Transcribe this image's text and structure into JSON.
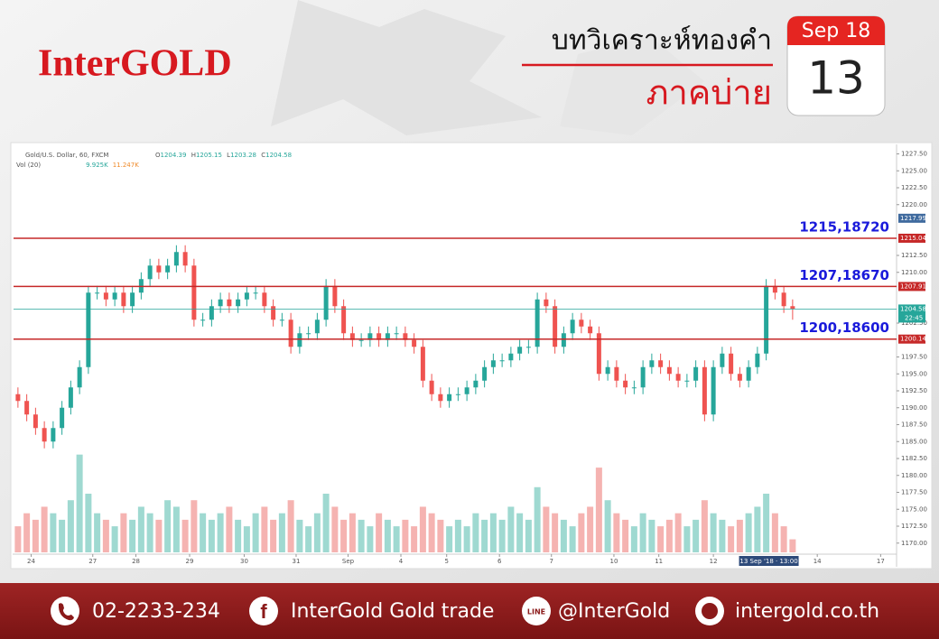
{
  "header": {
    "logo": "InterGOLD",
    "title": "บทวิเคราะห์ทองคำ",
    "subtitle": "ภาคบ่าย",
    "calendar_month": "Sep 18",
    "calendar_day": "13"
  },
  "chart_data": {
    "type": "candlestick",
    "symbol": "Gold/U.S. Dollar, 60, FXCM",
    "ohlc_legend": [
      {
        "key": "O",
        "value": 1204.39
      },
      {
        "key": "H",
        "value": 1205.15
      },
      {
        "key": "L",
        "value": 1203.28
      },
      {
        "key": "C",
        "value": 1204.58
      }
    ],
    "volume_legend": {
      "name": "Vol (20)",
      "values": [
        "9.925K",
        "11.247K"
      ]
    },
    "x": [
      0,
      1,
      2,
      3,
      4,
      5,
      6,
      7,
      8,
      9,
      10,
      11,
      12,
      13,
      14,
      15,
      16,
      17,
      18,
      19,
      20,
      21,
      22,
      23,
      24,
      25,
      26,
      27,
      28,
      29,
      30,
      31,
      32,
      33,
      34,
      35,
      36,
      37,
      38,
      39,
      40,
      41,
      42,
      43,
      44,
      45,
      46,
      47,
      48,
      49,
      50,
      51,
      52,
      53,
      54,
      55,
      56,
      57,
      58,
      59,
      60,
      61,
      62,
      63,
      64,
      65,
      66,
      67,
      68,
      69,
      70,
      71,
      72,
      73,
      74,
      75,
      76,
      77,
      78,
      79,
      80,
      81,
      82,
      83,
      84,
      85,
      86,
      87,
      88
    ],
    "open": [
      1192,
      1191,
      1189,
      1187,
      1185,
      1187,
      1190,
      1193,
      1196,
      1207,
      1207,
      1206,
      1207,
      1205,
      1207,
      1209,
      1211,
      1210,
      1211,
      1213,
      1211,
      1203,
      1203,
      1205,
      1206,
      1205,
      1206,
      1207,
      1207,
      1205,
      1203,
      1203,
      1199,
      1201,
      1201,
      1203,
      1208,
      1205,
      1201,
      1200,
      1200,
      1201,
      1200,
      1201,
      1201,
      1200,
      1199,
      1194,
      1192,
      1191,
      1192,
      1192,
      1193,
      1194,
      1196,
      1197,
      1197,
      1198,
      1199,
      1199,
      1206,
      1205,
      1199,
      1201,
      1203,
      1202,
      1201,
      1195,
      1196,
      1194,
      1193,
      1193,
      1196,
      1197,
      1196,
      1195,
      1194,
      1194,
      1196,
      1189,
      1196,
      1198,
      1195,
      1194,
      1196,
      1198,
      1208,
      1207,
      1205
    ],
    "high": [
      1193,
      1192,
      1190,
      1188,
      1188,
      1191,
      1194,
      1197,
      1208,
      1208,
      1208,
      1208,
      1208,
      1208,
      1210,
      1212,
      1212,
      1212,
      1214,
      1214,
      1212,
      1204,
      1206,
      1207,
      1207,
      1207,
      1208,
      1208,
      1208,
      1206,
      1204,
      1204,
      1202,
      1202,
      1204,
      1209,
      1209,
      1206,
      1202,
      1201,
      1202,
      1202,
      1202,
      1202,
      1202,
      1201,
      1200,
      1195,
      1193,
      1193,
      1193,
      1194,
      1195,
      1197,
      1198,
      1198,
      1199,
      1200,
      1200,
      1207,
      1207,
      1206,
      1202,
      1204,
      1204,
      1203,
      1202,
      1197,
      1197,
      1195,
      1194,
      1197,
      1198,
      1198,
      1197,
      1196,
      1195,
      1197,
      1197,
      1197,
      1199,
      1199,
      1196,
      1197,
      1199,
      1209,
      1209,
      1208,
      1206
    ],
    "low": [
      1190,
      1188,
      1186,
      1184,
      1184,
      1186,
      1189,
      1192,
      1195,
      1206,
      1205,
      1205,
      1204,
      1204,
      1206,
      1208,
      1209,
      1209,
      1210,
      1210,
      1202,
      1202,
      1202,
      1204,
      1204,
      1204,
      1205,
      1206,
      1204,
      1202,
      1202,
      1198,
      1198,
      1200,
      1200,
      1202,
      1204,
      1200,
      1199,
      1199,
      1199,
      1199,
      1199,
      1200,
      1199,
      1198,
      1193,
      1191,
      1190,
      1190,
      1191,
      1191,
      1192,
      1193,
      1195,
      1196,
      1196,
      1197,
      1198,
      1198,
      1204,
      1198,
      1198,
      1200,
      1201,
      1200,
      1194,
      1194,
      1193,
      1192,
      1192,
      1192,
      1195,
      1195,
      1194,
      1193,
      1193,
      1193,
      1188,
      1188,
      1195,
      1194,
      1193,
      1193,
      1195,
      1197,
      1206,
      1204,
      1203
    ],
    "close": [
      1191,
      1189,
      1187,
      1185,
      1187,
      1190,
      1193,
      1196,
      1207,
      1207,
      1206,
      1207,
      1205,
      1207,
      1209,
      1211,
      1210,
      1211,
      1213,
      1211,
      1203,
      1203,
      1205,
      1206,
      1205,
      1206,
      1207,
      1207,
      1205,
      1203,
      1203,
      1199,
      1201,
      1201,
      1203,
      1208,
      1205,
      1201,
      1200,
      1200,
      1201,
      1200,
      1201,
      1201,
      1200,
      1199,
      1194,
      1192,
      1191,
      1192,
      1192,
      1193,
      1194,
      1196,
      1197,
      1197,
      1198,
      1199,
      1199,
      1206,
      1205,
      1199,
      1201,
      1203,
      1202,
      1201,
      1195,
      1196,
      1194,
      1193,
      1193,
      1196,
      1197,
      1196,
      1195,
      1194,
      1194,
      1196,
      1189,
      1196,
      1198,
      1195,
      1194,
      1196,
      1198,
      1208,
      1207,
      1205,
      1204.58
    ],
    "volume": [
      4,
      6,
      5,
      7,
      6,
      5,
      8,
      15,
      9,
      6,
      5,
      4,
      6,
      5,
      7,
      6,
      5,
      8,
      7,
      5,
      8,
      6,
      5,
      6,
      7,
      5,
      4,
      6,
      7,
      5,
      6,
      8,
      5,
      4,
      6,
      9,
      7,
      5,
      6,
      5,
      4,
      6,
      5,
      4,
      5,
      4,
      7,
      6,
      5,
      4,
      5,
      4,
      6,
      5,
      6,
      5,
      7,
      6,
      5,
      10,
      7,
      6,
      5,
      4,
      6,
      7,
      13,
      8,
      6,
      5,
      4,
      6,
      5,
      4,
      5,
      6,
      4,
      5,
      8,
      6,
      5,
      4,
      5,
      6,
      7,
      9,
      6,
      4,
      2
    ],
    "vlim": [
      0,
      18
    ],
    "up_color": "#26a69a",
    "down_color": "#ef5350",
    "volume_up_color": "#9fd9d1",
    "volume_down_color": "#f5b3b1",
    "xlim": [
      0,
      100
    ],
    "xticks": [
      {
        "value": 2,
        "label": "24"
      },
      {
        "value": 9,
        "label": "27"
      },
      {
        "value": 13.9,
        "label": "28"
      },
      {
        "value": 20,
        "label": "29"
      },
      {
        "value": 26.2,
        "label": "30"
      },
      {
        "value": 32.1,
        "label": "31"
      },
      {
        "value": 38,
        "label": "Sep"
      },
      {
        "value": 44,
        "label": "4"
      },
      {
        "value": 49.2,
        "label": "5"
      },
      {
        "value": 55.2,
        "label": "6"
      },
      {
        "value": 61.1,
        "label": "7"
      },
      {
        "value": 68.2,
        "label": "10"
      },
      {
        "value": 73.3,
        "label": "11"
      },
      {
        "value": 79.5,
        "label": "12"
      },
      {
        "value": 91.3,
        "label": "14"
      },
      {
        "value": 98.5,
        "label": "17"
      }
    ],
    "x_cursor": {
      "value": 85.8,
      "label": "13 Sep '18 · 13:00"
    },
    "ylim": [
      1166.5,
      1228.5
    ],
    "yticks": [
      {
        "value": 1170,
        "label": "1170.00"
      },
      {
        "value": 1172.5,
        "label": "1172.50"
      },
      {
        "value": 1175,
        "label": "1175.00"
      },
      {
        "value": 1177.5,
        "label": "1177.50"
      },
      {
        "value": 1180,
        "label": "1180.00"
      },
      {
        "value": 1182.5,
        "label": "1182.50"
      },
      {
        "value": 1185,
        "label": "1185.00"
      },
      {
        "value": 1187.5,
        "label": "1187.50"
      },
      {
        "value": 1190,
        "label": "1190.00"
      },
      {
        "value": 1192.5,
        "label": "1192.50"
      },
      {
        "value": 1195,
        "label": "1195.00"
      },
      {
        "value": 1197.5,
        "label": "1197.50"
      },
      {
        "value": 1202.5,
        "label": "1202.50"
      },
      {
        "value": 1210,
        "label": "1210.00"
      },
      {
        "value": 1212.5,
        "label": "1212.50"
      },
      {
        "value": 1220,
        "label": "1220.00"
      },
      {
        "value": 1222.5,
        "label": "1222.50"
      },
      {
        "value": 1225,
        "label": "1225.00"
      },
      {
        "value": 1227.5,
        "label": "1227.50"
      }
    ],
    "grid": false,
    "levels": [
      {
        "price": 1215.04,
        "label": "1215,18720"
      },
      {
        "price": 1207.91,
        "label": "1207,18670"
      },
      {
        "price": 1200.14,
        "label": "1200,18600"
      }
    ],
    "level_color": "#c62828",
    "level_label_color": "#1a1adb",
    "marker_price": 1217.99,
    "marker_color": "#3f6a9e",
    "last_price": 1204.58,
    "countdown": "22:45",
    "last_color": "#26a69a"
  },
  "footer": {
    "phone": "02-2233-234",
    "facebook": "InterGold Gold trade",
    "line": "@InterGold",
    "website": "intergold.co.th"
  }
}
